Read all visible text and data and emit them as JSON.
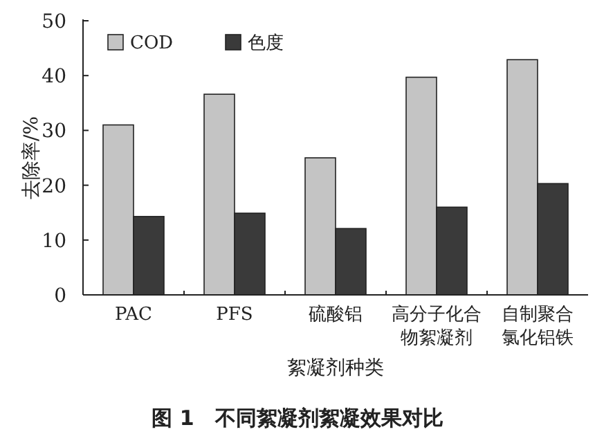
{
  "chart_data": {
    "type": "bar",
    "title": "图 1　不同絮凝剂絮凝效果对比",
    "xlabel": "絮凝剂种类",
    "ylabel": "去除率/%",
    "categories": [
      "PAC",
      "PFS",
      "硫酸铝",
      "高分子化合物絮凝剂",
      "自制聚合氯化铝铁"
    ],
    "series": [
      {
        "name": "COD",
        "color": "#c4c4c4",
        "values": [
          31,
          36.6,
          25,
          39.7,
          42.9
        ]
      },
      {
        "name": "色度",
        "color": "#3a3a3a",
        "values": [
          14.3,
          14.9,
          12.1,
          16,
          20.3
        ]
      }
    ],
    "ylim": [
      0,
      50
    ],
    "yticks": [
      0,
      10,
      20,
      30,
      40,
      50
    ],
    "legend": "top left",
    "grid": false
  }
}
